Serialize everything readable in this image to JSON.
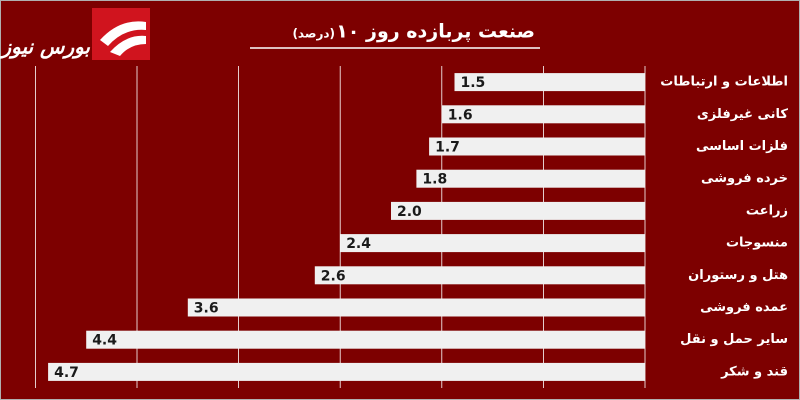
{
  "logo": "بورس نیوز",
  "chart_data": {
    "type": "barh",
    "title": "۱۰ صنعت پربازده روز",
    "subtitle": "(درصد)",
    "categories": [
      "اطلاعات و ارتباطات",
      "کانی غیرفلزی",
      "فلزات اساسی",
      "خرده فروشی",
      "زراعت",
      "منسوجات",
      "هتل و رستوران",
      "عمده فروشی",
      "سایر حمل و نقل",
      "قند و شکر"
    ],
    "values": [
      1.5,
      1.6,
      1.7,
      1.8,
      2.0,
      2.4,
      2.6,
      3.6,
      4.4,
      4.7
    ],
    "value_labels": [
      "1.5",
      "1.6",
      "1.7",
      "1.8",
      "2.0",
      "2.4",
      "2.6",
      "3.6",
      "4.4",
      "4.7"
    ],
    "color": "#f0f0f0",
    "xlim": [
      0,
      5
    ],
    "xticks": [
      0,
      0.8,
      1.6,
      2.4,
      3.2,
      4.0,
      4.8
    ],
    "grid": true,
    "reversed": true
  }
}
